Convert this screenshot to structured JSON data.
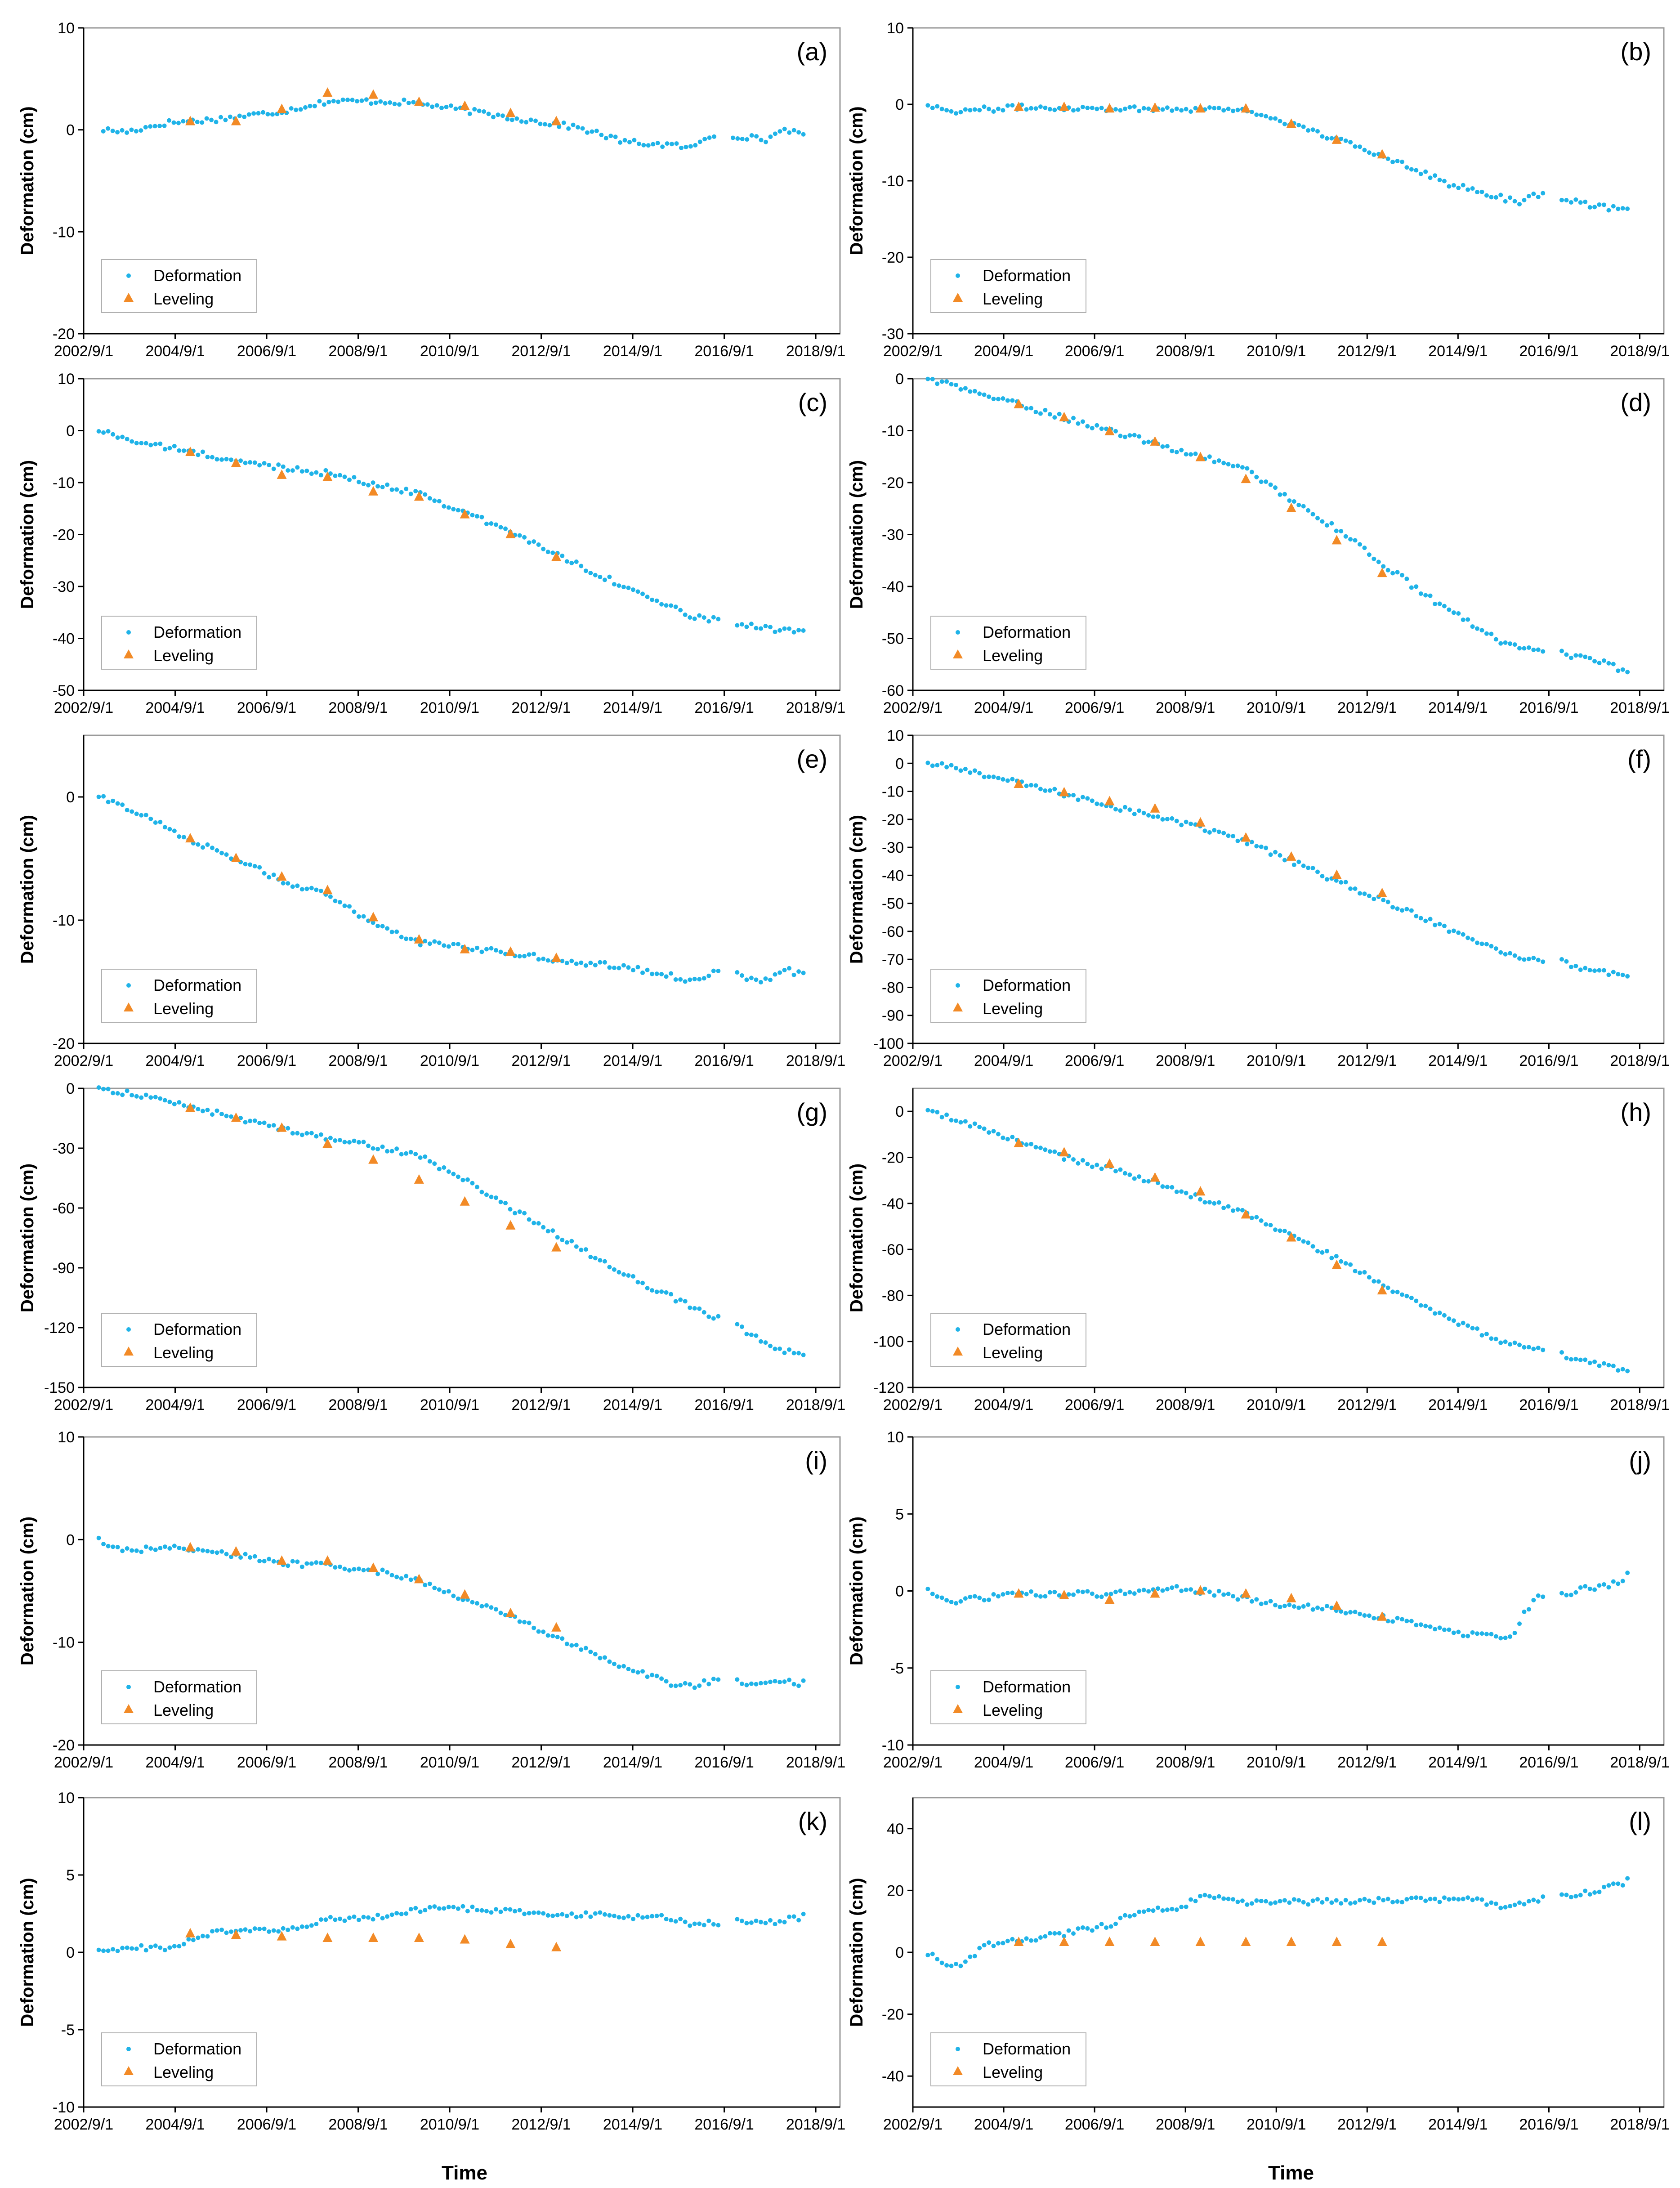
{
  "figure": {
    "x_title": "Time",
    "x_ticks": [
      "2002/9/1",
      "2004/9/1",
      "2006/9/1",
      "2008/9/1",
      "2010/9/1",
      "2012/9/1",
      "2014/9/1",
      "2016/9/1",
      "2018/9/1"
    ],
    "x_range_years": [
      2002.67,
      2019.2
    ],
    "legend": {
      "deformation": "Deformation",
      "leveling": "Leveling"
    },
    "colors": {
      "deformation": "#1fb3e8",
      "leveling": "#f28a26",
      "axis": "#000000",
      "frame": "#9a9a9a"
    }
  },
  "chart_data": [
    {
      "id": "a",
      "label": "(a)",
      "type": "scatter",
      "ylabel": "Deformation (cm)",
      "ylim": [
        -20,
        10
      ],
      "yticks": [
        10,
        0,
        -10,
        -20
      ],
      "leveling_x": [
        2005.0,
        2006.0,
        2007.0,
        2008.0,
        2009.0,
        2010.0,
        2011.0,
        2012.0,
        2013.0
      ],
      "leveling_y": [
        0.8,
        0.8,
        2.0,
        3.6,
        3.4,
        2.7,
        2.3,
        1.6,
        0.8
      ],
      "deformation_knots": [
        [
          2003.1,
          0.0
        ],
        [
          2003.6,
          -0.2
        ],
        [
          2004.5,
          0.7
        ],
        [
          2005.5,
          1.0
        ],
        [
          2007.0,
          1.8
        ],
        [
          2008.0,
          2.8
        ],
        [
          2009.2,
          2.8
        ],
        [
          2010.0,
          2.6
        ],
        [
          2012.0,
          1.2
        ],
        [
          2013.5,
          0.2
        ],
        [
          2014.5,
          -1.2
        ],
        [
          2015.5,
          -1.5
        ],
        [
          2016.0,
          -1.8
        ],
        [
          2016.3,
          -0.6
        ],
        [
          2017.0,
          -0.6
        ],
        [
          2017.6,
          -1.0
        ],
        [
          2018.0,
          0.2
        ],
        [
          2018.4,
          -0.7
        ]
      ]
    },
    {
      "id": "b",
      "label": "(b)",
      "type": "scatter",
      "ylabel": "Deformation (cm)",
      "ylim": [
        -30,
        10
      ],
      "yticks": [
        10,
        0,
        -10,
        -20,
        -30
      ],
      "leveling_x": [
        2005.0,
        2006.0,
        2007.0,
        2008.0,
        2009.0,
        2010.0,
        2011.0,
        2012.0,
        2013.0
      ],
      "leveling_y": [
        -0.4,
        -0.4,
        -0.6,
        -0.5,
        -0.6,
        -0.6,
        -2.6,
        -4.7,
        -6.6
      ],
      "deformation_knots": [
        [
          2003.0,
          0.0
        ],
        [
          2003.5,
          -0.9
        ],
        [
          2005.0,
          -0.4
        ],
        [
          2008.0,
          -0.6
        ],
        [
          2009.8,
          -0.6
        ],
        [
          2010.5,
          -1.6
        ],
        [
          2012.0,
          -4.6
        ],
        [
          2013.5,
          -7.8
        ],
        [
          2014.5,
          -10.5
        ],
        [
          2015.5,
          -12.0
        ],
        [
          2016.0,
          -12.8
        ],
        [
          2016.3,
          -11.8
        ],
        [
          2017.0,
          -12.2
        ],
        [
          2017.3,
          -12.8
        ],
        [
          2017.8,
          -13.4
        ],
        [
          2018.4,
          -14.0
        ]
      ]
    },
    {
      "id": "c",
      "label": "(c)",
      "type": "scatter",
      "ylabel": "Deformation (cm)",
      "ylim": [
        -50,
        10
      ],
      "yticks": [
        10,
        0,
        -10,
        -20,
        -30,
        -40,
        -50
      ],
      "leveling_x": [
        2005.0,
        2006.0,
        2007.0,
        2008.0,
        2009.0,
        2010.0,
        2011.0,
        2012.0,
        2013.0
      ],
      "leveling_y": [
        -4.2,
        -6.3,
        -8.6,
        -9.0,
        -11.8,
        -12.8,
        -16.2,
        -20.0,
        -24.4
      ],
      "deformation_knots": [
        [
          2003.0,
          0.0
        ],
        [
          2004.0,
          -2.5
        ],
        [
          2005.0,
          -4.0
        ],
        [
          2006.0,
          -6.0
        ],
        [
          2007.0,
          -7.0
        ],
        [
          2008.0,
          -8.2
        ],
        [
          2009.0,
          -10.4
        ],
        [
          2010.0,
          -12.0
        ],
        [
          2012.0,
          -19.5
        ],
        [
          2014.0,
          -28.0
        ],
        [
          2015.5,
          -34.0
        ],
        [
          2016.0,
          -36.0
        ],
        [
          2017.0,
          -37.0
        ],
        [
          2017.5,
          -38.0
        ],
        [
          2018.4,
          -39.0
        ]
      ]
    },
    {
      "id": "d",
      "label": "(d)",
      "type": "scatter",
      "ylabel": "Deformation (cm)",
      "ylim": [
        -60,
        0
      ],
      "yticks": [
        0,
        -10,
        -20,
        -30,
        -40,
        -50,
        -60
      ],
      "leveling_x": [
        2005.0,
        2006.0,
        2007.0,
        2008.0,
        2009.0,
        2010.0,
        2011.0,
        2012.0,
        2013.0
      ],
      "leveling_y": [
        -5.0,
        -7.5,
        -10.2,
        -12.2,
        -15.2,
        -19.4,
        -25.0,
        -31.2,
        -37.5
      ],
      "deformation_knots": [
        [
          2003.0,
          0.0
        ],
        [
          2004.0,
          -2.5
        ],
        [
          2005.0,
          -5.0
        ],
        [
          2006.0,
          -7.5
        ],
        [
          2007.0,
          -10.0
        ],
        [
          2008.0,
          -12.5
        ],
        [
          2009.0,
          -15.0
        ],
        [
          2010.0,
          -17.5
        ],
        [
          2012.0,
          -29.0
        ],
        [
          2014.0,
          -42.0
        ],
        [
          2015.5,
          -50.0
        ],
        [
          2016.0,
          -52.0
        ],
        [
          2017.0,
          -53.0
        ],
        [
          2017.5,
          -54.0
        ],
        [
          2018.0,
          -55.0
        ],
        [
          2018.4,
          -57.0
        ]
      ]
    },
    {
      "id": "e",
      "label": "(e)",
      "type": "scatter",
      "ylabel": "Deformation (cm)",
      "ylim": [
        -20,
        5
      ],
      "yticks": [
        0,
        -10,
        -20
      ],
      "leveling_x": [
        2005.0,
        2006.0,
        2007.0,
        2008.0,
        2009.0,
        2010.0,
        2011.0,
        2012.0,
        2013.0
      ],
      "leveling_y": [
        -3.4,
        -5.0,
        -6.5,
        -7.6,
        -9.8,
        -11.6,
        -12.4,
        -12.6,
        -13.1
      ],
      "deformation_knots": [
        [
          2003.0,
          0.0
        ],
        [
          2004.0,
          -1.5
        ],
        [
          2005.0,
          -3.5
        ],
        [
          2006.0,
          -5.0
        ],
        [
          2007.0,
          -6.8
        ],
        [
          2008.0,
          -8.0
        ],
        [
          2009.0,
          -10.2
        ],
        [
          2010.0,
          -11.8
        ],
        [
          2011.0,
          -12.2
        ],
        [
          2013.0,
          -13.2
        ],
        [
          2014.5,
          -13.8
        ],
        [
          2015.5,
          -14.5
        ],
        [
          2016.0,
          -15.0
        ],
        [
          2016.5,
          -14.0
        ],
        [
          2017.0,
          -14.5
        ],
        [
          2017.5,
          -15.0
        ],
        [
          2018.0,
          -14.0
        ],
        [
          2018.4,
          -14.5
        ]
      ]
    },
    {
      "id": "f",
      "label": "(f)",
      "type": "scatter",
      "ylabel": "Deformation (cm)",
      "ylim": [
        -100,
        10
      ],
      "yticks": [
        10,
        0,
        -10,
        -20,
        -30,
        -40,
        -50,
        -60,
        -70,
        -80,
        -90,
        -100
      ],
      "leveling_x": [
        2005.0,
        2006.0,
        2007.0,
        2008.0,
        2009.0,
        2010.0,
        2011.0,
        2012.0,
        2013.0
      ],
      "leveling_y": [
        -7.5,
        -10.5,
        -13.7,
        -16.3,
        -21.3,
        -26.7,
        -33.5,
        -40.0,
        -46.5
      ],
      "deformation_knots": [
        [
          2003.0,
          0.0
        ],
        [
          2004.0,
          -3.0
        ],
        [
          2005.0,
          -7.0
        ],
        [
          2006.0,
          -11.0
        ],
        [
          2007.0,
          -15.0
        ],
        [
          2008.0,
          -19.0
        ],
        [
          2009.0,
          -23.0
        ],
        [
          2010.0,
          -28.0
        ],
        [
          2012.0,
          -42.0
        ],
        [
          2014.0,
          -56.0
        ],
        [
          2015.5,
          -66.0
        ],
        [
          2016.0,
          -69.0
        ],
        [
          2017.0,
          -71.0
        ],
        [
          2017.5,
          -74.0
        ],
        [
          2018.0,
          -75.0
        ],
        [
          2018.4,
          -77.0
        ]
      ]
    },
    {
      "id": "g",
      "label": "(g)",
      "type": "scatter",
      "ylabel": "Deformation (cm)",
      "ylim": [
        -150,
        0
      ],
      "yticks": [
        0,
        -30,
        -60,
        -90,
        -120,
        -150
      ],
      "leveling_x": [
        2005.0,
        2006.0,
        2007.0,
        2008.0,
        2009.0,
        2010.0,
        2011.0,
        2012.0,
        2013.0
      ],
      "leveling_y": [
        -10.0,
        -15.0,
        -20.0,
        -28.0,
        -36.0,
        -46.0,
        -57.0,
        -69.0,
        -80.0
      ],
      "deformation_knots": [
        [
          2003.0,
          0.0
        ],
        [
          2004.0,
          -4.0
        ],
        [
          2005.0,
          -9.0
        ],
        [
          2006.0,
          -15.0
        ],
        [
          2007.0,
          -20.0
        ],
        [
          2008.0,
          -25.0
        ],
        [
          2009.0,
          -29.0
        ],
        [
          2010.0,
          -34.0
        ],
        [
          2011.0,
          -46.0
        ],
        [
          2012.0,
          -60.0
        ],
        [
          2013.0,
          -73.0
        ],
        [
          2014.0,
          -87.0
        ],
        [
          2015.0,
          -99.0
        ],
        [
          2016.0,
          -110.0
        ],
        [
          2017.0,
          -120.0
        ],
        [
          2017.5,
          -127.0
        ],
        [
          2018.4,
          -135.0
        ]
      ]
    },
    {
      "id": "h",
      "label": "(h)",
      "type": "scatter",
      "ylabel": "Deformation (cm)",
      "ylim": [
        -120,
        10
      ],
      "yticks": [
        0,
        -20,
        -40,
        -60,
        -80,
        -100,
        -120
      ],
      "leveling_x": [
        2005.0,
        2006.0,
        2007.0,
        2008.0,
        2009.0,
        2010.0,
        2011.0,
        2012.0,
        2013.0
      ],
      "leveling_y": [
        -14.0,
        -18.0,
        -23.0,
        -29.0,
        -35.0,
        -45.0,
        -55.0,
        -67.0,
        -78.0
      ],
      "deformation_knots": [
        [
          2003.0,
          0.0
        ],
        [
          2004.0,
          -6.0
        ],
        [
          2005.0,
          -13.0
        ],
        [
          2006.0,
          -20.0
        ],
        [
          2007.0,
          -25.0
        ],
        [
          2008.0,
          -31.0
        ],
        [
          2009.0,
          -38.0
        ],
        [
          2010.0,
          -44.0
        ],
        [
          2012.0,
          -64.0
        ],
        [
          2014.0,
          -86.0
        ],
        [
          2015.5,
          -99.0
        ],
        [
          2016.0,
          -102.0
        ],
        [
          2017.0,
          -106.0
        ],
        [
          2017.5,
          -109.0
        ],
        [
          2018.0,
          -111.0
        ],
        [
          2018.4,
          -114.0
        ]
      ]
    },
    {
      "id": "i",
      "label": "(i)",
      "type": "scatter",
      "ylabel": "Deformation (cm)",
      "ylim": [
        -20,
        10
      ],
      "yticks": [
        10,
        0,
        -10,
        -20
      ],
      "leveling_x": [
        2005.0,
        2006.0,
        2007.0,
        2008.0,
        2009.0,
        2010.0,
        2011.0,
        2012.0,
        2013.0
      ],
      "leveling_y": [
        -0.8,
        -1.2,
        -2.1,
        -2.1,
        -2.8,
        -3.9,
        -5.4,
        -7.2,
        -8.6
      ],
      "deformation_knots": [
        [
          2003.0,
          0.0
        ],
        [
          2003.5,
          -1.0
        ],
        [
          2005.0,
          -0.8
        ],
        [
          2006.0,
          -1.5
        ],
        [
          2007.0,
          -2.3
        ],
        [
          2008.0,
          -2.5
        ],
        [
          2009.0,
          -3.0
        ],
        [
          2010.0,
          -4.0
        ],
        [
          2012.0,
          -7.5
        ],
        [
          2013.5,
          -10.5
        ],
        [
          2014.5,
          -12.5
        ],
        [
          2015.5,
          -14.0
        ],
        [
          2016.0,
          -14.2
        ],
        [
          2016.5,
          -13.6
        ],
        [
          2017.2,
          -14.0
        ],
        [
          2017.8,
          -13.8
        ],
        [
          2018.4,
          -14.0
        ]
      ]
    },
    {
      "id": "j",
      "label": "(j)",
      "type": "scatter",
      "ylabel": "Deformation (cm)",
      "ylim": [
        -10,
        10
      ],
      "yticks": [
        10,
        5,
        0,
        -5,
        -10
      ],
      "leveling_x": [
        2005.0,
        2006.0,
        2007.0,
        2008.0,
        2009.0,
        2010.0,
        2011.0,
        2012.0,
        2013.0
      ],
      "leveling_y": [
        -0.2,
        -0.3,
        -0.6,
        -0.2,
        0.0,
        -0.2,
        -0.5,
        -1.0,
        -1.7
      ],
      "deformation_knots": [
        [
          2003.0,
          0.0
        ],
        [
          2003.5,
          -0.7
        ],
        [
          2005.0,
          -0.2
        ],
        [
          2007.0,
          -0.2
        ],
        [
          2008.5,
          0.2
        ],
        [
          2009.5,
          -0.2
        ],
        [
          2010.5,
          -0.8
        ],
        [
          2012.0,
          -1.2
        ],
        [
          2013.5,
          -2.0
        ],
        [
          2014.5,
          -2.7
        ],
        [
          2015.5,
          -3.0
        ],
        [
          2015.9,
          -2.8
        ],
        [
          2016.1,
          -1.6
        ],
        [
          2016.4,
          -0.3
        ],
        [
          2017.0,
          -0.3
        ],
        [
          2017.5,
          0.2
        ],
        [
          2018.0,
          0.3
        ],
        [
          2018.4,
          1.0
        ]
      ]
    },
    {
      "id": "k",
      "label": "(k)",
      "type": "scatter",
      "ylabel": "Deformation (cm)",
      "ylim": [
        -10,
        10
      ],
      "yticks": [
        10,
        5,
        0,
        -5,
        -10
      ],
      "leveling_x": [
        2005.0,
        2006.0,
        2007.0,
        2008.0,
        2009.0,
        2010.0,
        2011.0,
        2012.0,
        2013.0
      ],
      "leveling_y": [
        1.2,
        1.1,
        1.0,
        0.9,
        0.9,
        0.9,
        0.8,
        0.5,
        0.3
      ],
      "deformation_knots": [
        [
          2003.0,
          0.0
        ],
        [
          2003.6,
          0.3
        ],
        [
          2004.6,
          0.3
        ],
        [
          2005.5,
          1.3
        ],
        [
          2006.5,
          1.4
        ],
        [
          2007.5,
          1.5
        ],
        [
          2008.0,
          2.2
        ],
        [
          2009.0,
          2.2
        ],
        [
          2010.0,
          2.8
        ],
        [
          2011.0,
          2.8
        ],
        [
          2012.0,
          2.6
        ],
        [
          2014.0,
          2.4
        ],
        [
          2015.5,
          2.2
        ],
        [
          2016.0,
          1.8
        ],
        [
          2017.0,
          2.0
        ],
        [
          2017.8,
          2.0
        ],
        [
          2018.4,
          2.3
        ]
      ]
    },
    {
      "id": "l",
      "label": "(l)",
      "type": "scatter",
      "ylabel": "Deformation (cm)",
      "ylim": [
        -50,
        50
      ],
      "yticks": [
        40,
        20,
        0,
        -20,
        -40
      ],
      "leveling_x": [
        2005.0,
        2006.0,
        2007.0,
        2008.0,
        2009.0,
        2010.0,
        2011.0,
        2012.0,
        2013.0
      ],
      "leveling_y": [
        3.2,
        3.2,
        3.2,
        3.2,
        3.2,
        3.2,
        3.2,
        3.2,
        3.2
      ],
      "deformation_knots": [
        [
          2003.0,
          0.0
        ],
        [
          2003.4,
          -5.0
        ],
        [
          2003.8,
          -4.0
        ],
        [
          2004.2,
          2.0
        ],
        [
          2005.0,
          4.0
        ],
        [
          2006.0,
          6.0
        ],
        [
          2007.0,
          9.0
        ],
        [
          2007.8,
          14.0
        ],
        [
          2008.5,
          14.0
        ],
        [
          2009.0,
          18.0
        ],
        [
          2010.0,
          16.0
        ],
        [
          2012.0,
          16.5
        ],
        [
          2014.0,
          17.0
        ],
        [
          2015.0,
          17.5
        ],
        [
          2015.8,
          14.0
        ],
        [
          2016.3,
          17.0
        ],
        [
          2017.0,
          18.0
        ],
        [
          2017.8,
          20.0
        ],
        [
          2018.4,
          23.0
        ]
      ]
    }
  ]
}
